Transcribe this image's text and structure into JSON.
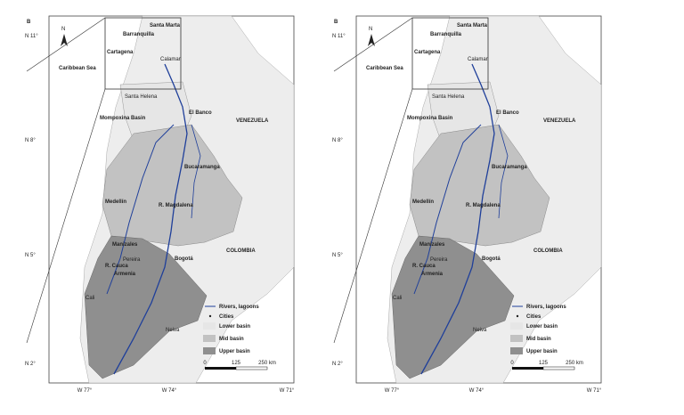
{
  "panels": [
    {
      "label": "B",
      "north": "N",
      "lat_labels": [
        "N 11°",
        "N 8°",
        "N 5°",
        "N 2°"
      ],
      "lon_labels": [
        "W 77°",
        "W 74°",
        "W 71°"
      ],
      "places": [
        "Santa Marta",
        "Barranquilla",
        "Cartagena",
        "Calamar",
        "Caribbean Sea",
        "Santa Helena",
        "Mompoxina Basin",
        "El Banco",
        "VENEZUELA",
        "Bucaramanga",
        "Medellín",
        "COLOMBIA",
        "Manizales",
        "Pereira",
        "Armenia",
        "Bogotá",
        "Cali",
        "Neiva",
        "R. Magdalena",
        "R. Cauca"
      ],
      "legend": [
        "Rivers, lagoons",
        "Cities",
        "Lower basin",
        "Mid basin",
        "Upper basin"
      ],
      "scale": [
        "0",
        "125",
        "250 km"
      ]
    },
    {
      "label": "B",
      "north": "N",
      "lat_labels": [
        "N 11°",
        "N 8°",
        "N 5°",
        "N 2°"
      ],
      "lon_labels": [
        "W 77°",
        "W 74°",
        "W 71°"
      ],
      "places": [
        "Santa Marta",
        "Barranquilla",
        "Cartagena",
        "Calamar",
        "Caribbean Sea",
        "Santa Helena",
        "Mompoxina Basin",
        "El Banco",
        "VENEZUELA",
        "Bucaramanga",
        "Medellín",
        "COLOMBIA",
        "Manizales",
        "Pereira",
        "Armenia",
        "Bogotá",
        "Cali",
        "Neiva",
        "R. Magdalena",
        "R. Cauca"
      ],
      "legend": [
        "Rivers, lagoons",
        "Cities",
        "Lower basin",
        "Mid basin",
        "Upper basin"
      ],
      "scale": [
        "0",
        "125",
        "250 km"
      ]
    }
  ]
}
